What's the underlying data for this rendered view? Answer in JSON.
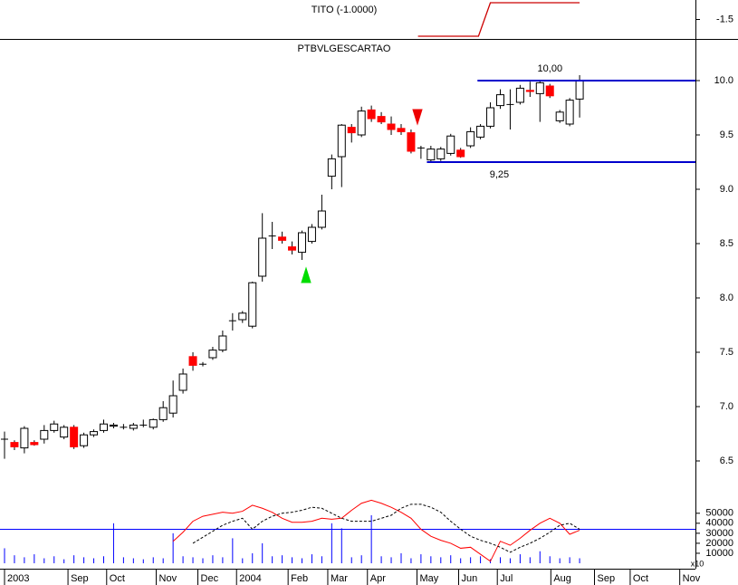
{
  "chart_data": [
    {
      "type": "line",
      "title": "TITO (-1.0000)",
      "x": [
        41.7,
        47.8,
        49,
        58
      ],
      "values": [
        -1.93,
        -1.93,
        -1.07,
        -1.07
      ],
      "color": "#cc0000",
      "xlim": [
        -0.44,
        69.7
      ],
      "ylim": [
        -2,
        -1
      ],
      "yticks": [
        -1.5
      ]
    },
    {
      "type": "candlestick",
      "title": "PTBVLGESCARTAO",
      "open": [
        6.7,
        6.67,
        6.62,
        6.67,
        6.7,
        6.78,
        6.72,
        6.81,
        6.64,
        6.74,
        6.78,
        6.82,
        6.81,
        6.8,
        6.83,
        6.81,
        6.88,
        6.94,
        7.15,
        7.46,
        7.39,
        7.45,
        7.52,
        7.79,
        7.8,
        7.74,
        8.2,
        8.57,
        8.56,
        8.47,
        8.42,
        8.52,
        8.65,
        9.12,
        9.3,
        9.57,
        9.5,
        9.73,
        9.67,
        9.6,
        9.56,
        9.52,
        9.38,
        9.27,
        9.28,
        9.33,
        9.36,
        9.4,
        9.48,
        9.58,
        9.77,
        9.78,
        9.8,
        9.91,
        9.88,
        9.95,
        9.63,
        9.6,
        9.83
      ],
      "high": [
        6.77,
        6.69,
        6.82,
        6.69,
        6.83,
        6.87,
        6.83,
        6.83,
        6.76,
        6.79,
        6.88,
        6.85,
        6.84,
        6.85,
        6.88,
        6.89,
        7.05,
        7.24,
        7.35,
        7.5,
        7.41,
        7.55,
        7.7,
        7.86,
        7.88,
        8.15,
        8.78,
        8.7,
        8.61,
        8.52,
        8.62,
        8.68,
        8.95,
        9.32,
        9.6,
        9.6,
        9.76,
        9.77,
        9.71,
        9.67,
        9.6,
        9.55,
        9.4,
        9.4,
        9.39,
        9.51,
        9.38,
        9.57,
        9.6,
        9.8,
        9.92,
        9.92,
        9.96,
        9.99,
        10.0,
        9.97,
        9.73,
        9.84,
        10.05
      ],
      "low": [
        6.52,
        6.6,
        6.57,
        6.64,
        6.66,
        6.76,
        6.7,
        6.61,
        6.62,
        6.72,
        6.76,
        6.8,
        6.79,
        6.78,
        6.81,
        6.79,
        6.86,
        6.9,
        7.12,
        7.33,
        7.37,
        7.43,
        7.5,
        7.7,
        7.77,
        7.72,
        8.15,
        8.45,
        8.5,
        8.4,
        8.35,
        8.5,
        8.63,
        9.0,
        9.02,
        9.43,
        9.48,
        9.62,
        9.6,
        9.5,
        9.5,
        9.33,
        9.28,
        9.25,
        9.26,
        9.31,
        9.29,
        9.38,
        9.46,
        9.56,
        9.74,
        9.55,
        9.78,
        9.85,
        9.62,
        9.84,
        9.61,
        9.58,
        9.66
      ],
      "close": [
        6.7,
        6.63,
        6.8,
        6.65,
        6.78,
        6.84,
        6.81,
        6.63,
        6.74,
        6.77,
        6.84,
        6.83,
        6.81,
        6.83,
        6.83,
        6.88,
        6.99,
        7.1,
        7.3,
        7.38,
        7.39,
        7.52,
        7.65,
        7.79,
        7.86,
        8.14,
        8.55,
        8.57,
        8.53,
        8.44,
        8.6,
        8.65,
        8.8,
        9.28,
        9.59,
        9.52,
        9.72,
        9.65,
        9.62,
        9.55,
        9.53,
        9.35,
        9.38,
        9.37,
        9.37,
        9.49,
        9.3,
        9.53,
        9.58,
        9.75,
        9.87,
        9.78,
        9.93,
        9.9,
        9.98,
        9.86,
        9.71,
        9.82,
        10.0
      ],
      "up_color": "#ffffff",
      "down_color": "#ff0000",
      "levels": [
        {
          "value": 10.0,
          "label": "10,00",
          "start": 47.7
        },
        {
          "value": 9.25,
          "label": "9,25",
          "start": 42.6
        }
      ],
      "level_color": "#0000cc",
      "xlim": [
        -0.44,
        69.7
      ],
      "ylim": [
        6.2,
        10.4
      ],
      "yticks": [
        {
          "value": 10,
          "label": "10.0"
        },
        9.5,
        {
          "value": 9,
          "label": "9.0"
        },
        8.5,
        {
          "value": 8,
          "label": "8.0"
        },
        7.5,
        {
          "value": 7,
          "label": "7.0"
        },
        6.5
      ]
    },
    {
      "type": "bar",
      "values": [
        15000,
        8000,
        6000,
        9000,
        5000,
        7000,
        4000,
        8000,
        6000,
        5000,
        7000,
        40000,
        6000,
        5000,
        4000,
        6000,
        5000,
        30000,
        7000,
        6000,
        5000,
        8000,
        6000,
        25000,
        5000,
        10000,
        20000,
        7000,
        8000,
        6000,
        5000,
        9000,
        7000,
        40000,
        35000,
        6000,
        8000,
        48000,
        7000,
        6000,
        10000,
        5000,
        9000,
        7000,
        6000,
        8000,
        5000,
        6000,
        7000,
        4000,
        6000,
        5000,
        9000,
        6000,
        12000,
        7000,
        5000,
        6000,
        5000
      ],
      "color": "#0000ff",
      "reference_line": 34000,
      "unit_label": "x10",
      "lines": [
        {
          "color": "#ff0000",
          "dash": false,
          "values": [
            null,
            null,
            null,
            null,
            null,
            null,
            null,
            null,
            null,
            null,
            null,
            null,
            null,
            null,
            null,
            null,
            null,
            22000,
            31000,
            42000,
            47000,
            49000,
            51000,
            50000,
            52000,
            58000,
            55000,
            51000,
            45000,
            41000,
            41000,
            42000,
            45000,
            44000,
            45000,
            53000,
            60000,
            63000,
            60000,
            56000,
            51000,
            45000,
            34000,
            27000,
            23000,
            20000,
            15000,
            16000,
            9000,
            2000,
            22000,
            18000,
            25000,
            33000,
            40000,
            45000,
            40000,
            29000,
            33000
          ]
        },
        {
          "color": "#000000",
          "dash": true,
          "values": [
            null,
            null,
            null,
            null,
            null,
            null,
            null,
            null,
            null,
            null,
            null,
            null,
            null,
            null,
            null,
            null,
            null,
            null,
            null,
            20000,
            26000,
            32000,
            38000,
            42000,
            45000,
            34000,
            42000,
            47000,
            50000,
            51000,
            53000,
            56000,
            55000,
            50000,
            45000,
            42000,
            42000,
            42000,
            45000,
            48000,
            55000,
            59000,
            59000,
            56000,
            51000,
            42000,
            34000,
            27000,
            23000,
            20000,
            16000,
            11000,
            16000,
            20000,
            25000,
            31000,
            38000,
            40000,
            34000
          ]
        }
      ],
      "xlim": [
        -0.44,
        69.7
      ],
      "ylim": [
        0,
        67000
      ],
      "yticks": [
        10000,
        20000,
        30000,
        40000,
        50000
      ],
      "xticks": [
        {
          "value": 0,
          "label": "2003"
        },
        {
          "value": 6.4,
          "label": "Sep"
        },
        {
          "value": 10.3,
          "label": "Oct"
        },
        {
          "value": 15.3,
          "label": "Nov"
        },
        {
          "value": 19.5,
          "label": "Dec"
        },
        {
          "value": 23.4,
          "label": "2004"
        },
        {
          "value": 28.6,
          "label": "Feb"
        },
        {
          "value": 32.6,
          "label": "Mar"
        },
        {
          "value": 36.6,
          "label": "Apr"
        },
        {
          "value": 41.6,
          "label": "May"
        },
        {
          "value": 45.8,
          "label": "Jun"
        },
        {
          "value": 49.7,
          "label": "Jul"
        },
        {
          "value": 55.1,
          "label": "Aug"
        },
        {
          "value": 59.5,
          "label": "Sep"
        },
        {
          "value": 63.1,
          "label": "Oct"
        },
        {
          "value": 68.1,
          "label": "Nov"
        }
      ]
    }
  ]
}
